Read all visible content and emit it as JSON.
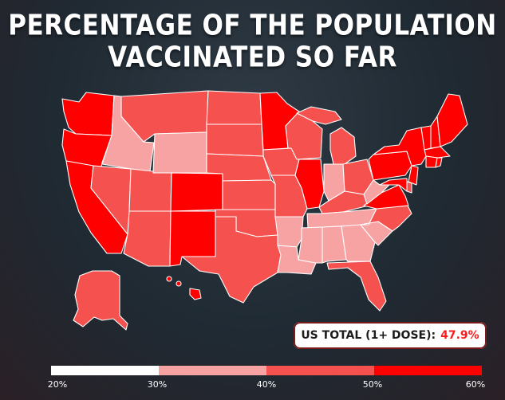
{
  "title": {
    "line1": "PERCENTAGE OF THE POPULATION",
    "line2": "VACCINATED SO FAR"
  },
  "colors": {
    "bin_20_30": "#ffffff",
    "bin_30_40": "#f7a3a3",
    "bin_40_50": "#f5524f",
    "bin_50_60": "#ff0000",
    "accent_red": "#ff1a1a"
  },
  "total": {
    "label": "US TOTAL (1+ DOSE):",
    "value": "47.9%"
  },
  "scale": {
    "ticks": [
      "20%",
      "30%",
      "40%",
      "50%",
      "60%"
    ]
  },
  "map_data": {
    "type": "choropleth",
    "region": "United States",
    "bins": [
      "20-30%",
      "30-40%",
      "40-50%",
      "50-60%"
    ],
    "states": {
      "WA": "50-60%",
      "OR": "50-60%",
      "CA": "50-60%",
      "NV": "40-50%",
      "ID": "30-40%",
      "MT": "40-50%",
      "WY": "30-40%",
      "UT": "40-50%",
      "AZ": "40-50%",
      "CO": "50-60%",
      "NM": "50-60%",
      "ND": "40-50%",
      "SD": "40-50%",
      "NE": "40-50%",
      "KS": "40-50%",
      "OK": "40-50%",
      "TX": "40-50%",
      "MN": "50-60%",
      "IA": "40-50%",
      "MO": "40-50%",
      "AR": "30-40%",
      "LA": "30-40%",
      "WI": "40-50%",
      "IL": "50-60%",
      "MI": "40-50%",
      "IN": "30-40%",
      "OH": "40-50%",
      "KY": "40-50%",
      "TN": "30-40%",
      "MS": "30-40%",
      "AL": "30-40%",
      "GA": "30-40%",
      "FL": "40-50%",
      "SC": "30-40%",
      "NC": "40-50%",
      "VA": "50-60%",
      "WV": "30-40%",
      "PA": "50-60%",
      "NY": "50-60%",
      "VT": "50-60%",
      "NH": "50-60%",
      "ME": "50-60%",
      "MA": "50-60%",
      "CT": "50-60%",
      "RI": "50-60%",
      "NJ": "50-60%",
      "DE": "40-50%",
      "MD": "50-60%",
      "AK": "40-50%",
      "HI": "50-60%"
    }
  }
}
